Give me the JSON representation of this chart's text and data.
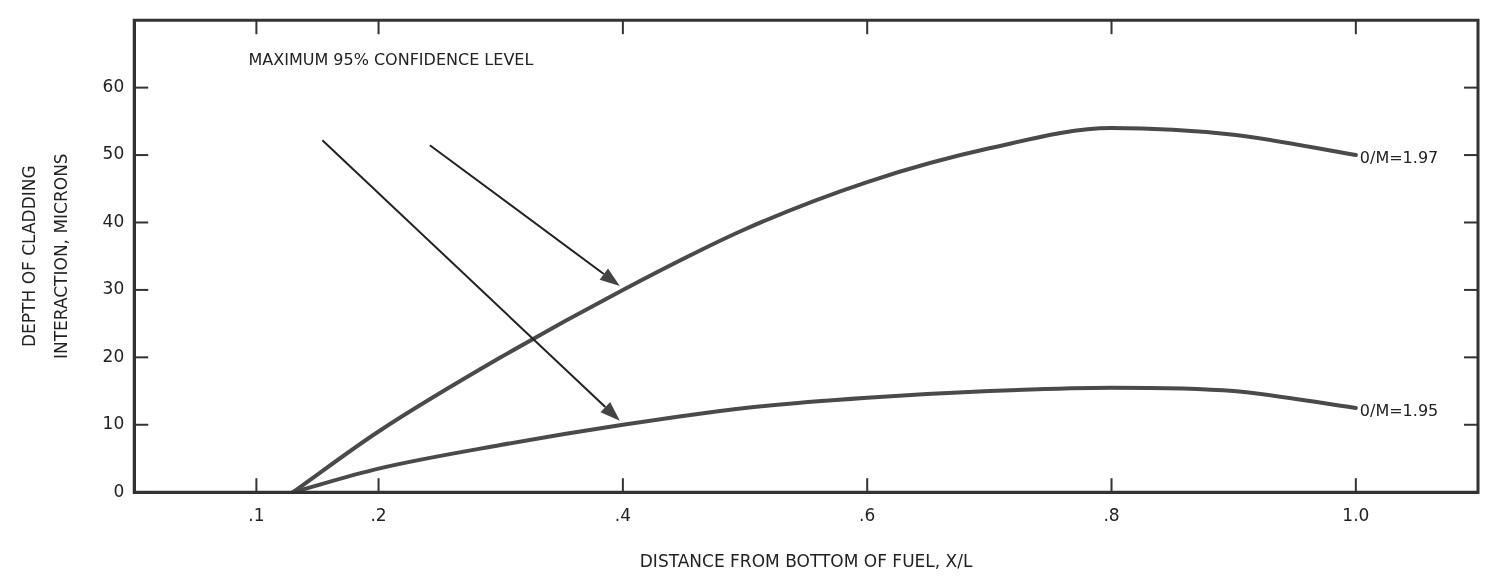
{
  "chart_data": {
    "type": "line",
    "xlabel": "DISTANCE FROM BOTTOM OF FUEL, X/L",
    "ylabel": "DEPTH OF CLADDING\nINTERACTION, MICRONS",
    "annotations": [
      "MAXIMUM 95% CONFIDENCE LEVEL"
    ],
    "series": [
      {
        "name": "0/M=1.97",
        "color": "#4a4a4a",
        "x": [
          0.13,
          0.2,
          0.3,
          0.4,
          0.5,
          0.6,
          0.7,
          0.8,
          0.9,
          1.0
        ],
        "values": [
          0,
          9,
          20,
          30,
          39,
          46,
          51,
          54,
          53,
          50
        ]
      },
      {
        "name": "0/M=1.95",
        "color": "#4a4a4a",
        "x": [
          0.13,
          0.2,
          0.3,
          0.4,
          0.5,
          0.6,
          0.7,
          0.8,
          0.9,
          1.0
        ],
        "values": [
          0,
          3.5,
          7,
          10,
          12.5,
          14,
          15,
          15.5,
          15,
          12.5
        ]
      }
    ],
    "xlim": [
      0,
      1.1
    ],
    "xticks": [
      {
        "value": 0.1,
        "label": ".1"
      },
      {
        "value": 0.2,
        "label": ".2"
      },
      {
        "value": 0.4,
        "label": ".4"
      },
      {
        "value": 0.6,
        "label": ".6"
      },
      {
        "value": 0.8,
        "label": ".8"
      },
      {
        "value": 1.0,
        "label": "1.0"
      }
    ],
    "ylim": [
      0,
      70
    ],
    "yticks": [
      0,
      10,
      20,
      30,
      40,
      50,
      60
    ],
    "grid": false,
    "legend": false,
    "marker": "none",
    "line_style": "solid"
  }
}
